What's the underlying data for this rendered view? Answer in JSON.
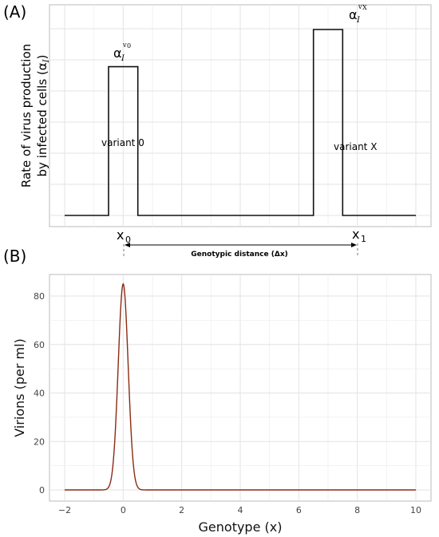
{
  "panel_a": {
    "label": "(A)",
    "ylabel_line1": "Rate of virus production",
    "ylabel_line2": "by infected cells (α",
    "ylabel_sub": "I",
    "ylabel_close": ")",
    "variant0_label": "variant 0",
    "variantX_label": "variant X",
    "peak0_symbol": "α",
    "peak0_sub": "I",
    "peak0_sup": "v",
    "peak0_sup_sub": "0",
    "peakX_symbol": "α",
    "peakX_sub": "I",
    "peakX_sup": "v",
    "peakX_sup_sub": "X",
    "x0_main": "x",
    "x0_sub": "0",
    "x1_main": "x",
    "x1_sub": "1",
    "distance_label": "Genotypic distance (Δx)"
  },
  "panel_b": {
    "label": "(B)"
  },
  "chart_data": [
    {
      "type": "line",
      "x": [
        -2,
        -1,
        -0.5,
        -0.5,
        0.5,
        0.5,
        6.5,
        6.5,
        7.5,
        7.5,
        8.5,
        10
      ],
      "y": [
        0,
        0,
        0,
        1,
        1,
        0,
        0,
        1.25,
        1.25,
        0,
        0,
        0
      ],
      "xlim": [
        -2,
        10
      ],
      "xticks": [],
      "annotations": [
        "variant 0",
        "variant X"
      ]
    },
    {
      "type": "line",
      "title": "",
      "xlabel": "Genotype (x)",
      "ylabel": "Virions (per ml)",
      "xlim": [
        -2,
        10
      ],
      "ylim": [
        -3,
        90
      ],
      "xticks": [
        -2,
        0,
        2,
        4,
        6,
        8,
        10
      ],
      "yticks": [
        0,
        20,
        40,
        60,
        80
      ],
      "curve": {
        "kind": "gaussian",
        "center": 0,
        "peak": 85,
        "sigma": 0.17
      },
      "color": "#8b2a12"
    }
  ]
}
